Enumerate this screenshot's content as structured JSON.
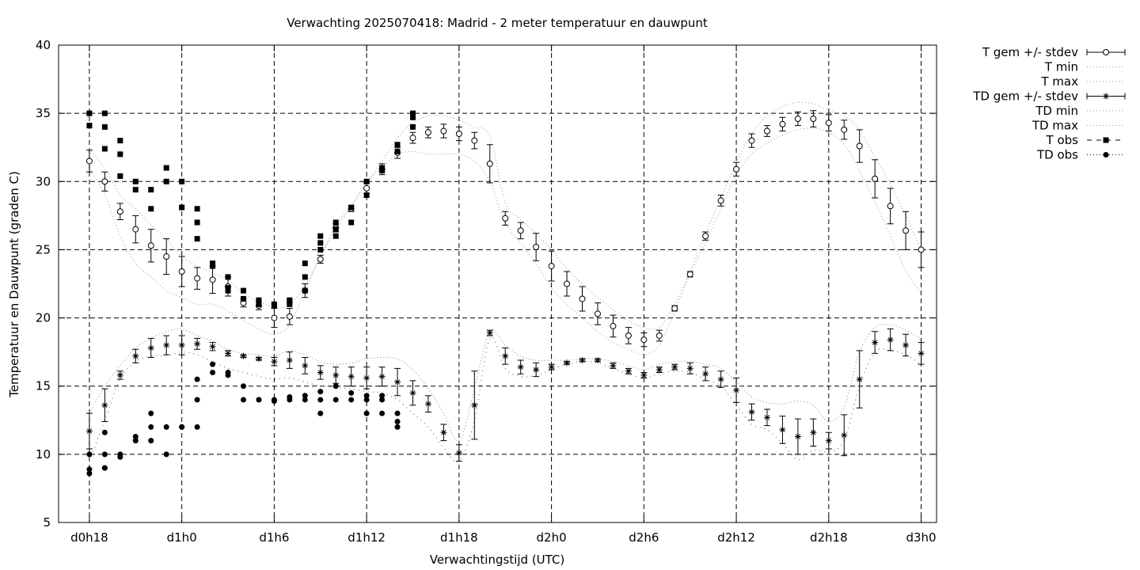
{
  "chart_data": {
    "type": "line",
    "title": "Verwachting 2025070418: Madrid - 2 meter temperatuur en dauwpunt",
    "xlabel": "Verwachtingstijd (UTC)",
    "ylabel": "Temperatuur en Dauwpunt (graden C)",
    "x_unit": "hours",
    "xlim": [
      16,
      73
    ],
    "ylim": [
      5,
      40
    ],
    "grid": true,
    "legend_position": "outside-top-right",
    "x_ticks": [
      {
        "x": 18,
        "label": "d0h18"
      },
      {
        "x": 24,
        "label": "d1h0"
      },
      {
        "x": 30,
        "label": "d1h6"
      },
      {
        "x": 36,
        "label": "d1h12"
      },
      {
        "x": 42,
        "label": "d1h18"
      },
      {
        "x": 48,
        "label": "d2h0"
      },
      {
        "x": 54,
        "label": "d2h6"
      },
      {
        "x": 60,
        "label": "d2h12"
      },
      {
        "x": 66,
        "label": "d2h18"
      },
      {
        "x": 72,
        "label": "d3h0"
      }
    ],
    "y_ticks": [
      5,
      10,
      15,
      20,
      25,
      30,
      35,
      40
    ],
    "legend": [
      {
        "label": "T gem +/- stdev",
        "style": "errorbar-circle"
      },
      {
        "label": "T min",
        "style": "dotted"
      },
      {
        "label": "T max",
        "style": "dotted"
      },
      {
        "label": "TD gem +/- stdev",
        "style": "errorbar-star"
      },
      {
        "label": "TD min",
        "style": "dotted"
      },
      {
        "label": "TD max",
        "style": "dotted"
      },
      {
        "label": "T obs",
        "style": "dashed-square"
      },
      {
        "label": "TD obs",
        "style": "dotted-circle"
      }
    ],
    "series": {
      "T_gem": {
        "x": [
          18,
          19,
          20,
          21,
          22,
          23,
          24,
          25,
          26,
          27,
          28,
          29,
          30,
          31,
          32,
          33,
          34,
          35,
          36,
          37,
          38,
          39,
          40,
          41,
          42,
          43,
          44,
          45,
          46,
          47,
          48,
          49,
          50,
          51,
          52,
          53,
          54,
          55,
          56,
          57,
          58,
          59,
          60,
          61,
          62,
          63,
          64,
          65,
          66,
          67,
          68,
          69,
          70,
          71,
          72
        ],
        "y": [
          31.5,
          30.0,
          27.8,
          26.5,
          25.3,
          24.5,
          23.4,
          22.9,
          22.8,
          22.3,
          21.1,
          20.9,
          20.0,
          20.1,
          22.0,
          24.3,
          26.6,
          28.0,
          29.5,
          30.9,
          32.1,
          33.2,
          33.6,
          33.7,
          33.5,
          33.0,
          31.3,
          27.3,
          26.4,
          25.2,
          23.8,
          22.5,
          21.4,
          20.3,
          19.4,
          18.7,
          18.4,
          18.7,
          20.7,
          23.2,
          26.0,
          28.6,
          30.9,
          33.0,
          33.7,
          34.2,
          34.6,
          34.6,
          34.3,
          33.8,
          32.6,
          30.2,
          28.2,
          26.4,
          25.0
        ],
        "stdev": [
          0.8,
          0.7,
          0.6,
          1.0,
          1.2,
          1.3,
          1.1,
          0.8,
          1.0,
          0.7,
          0.3,
          0.3,
          0.7,
          0.6,
          0.5,
          0.3,
          0.3,
          0.2,
          0.4,
          0.4,
          0.4,
          0.4,
          0.4,
          0.5,
          0.5,
          0.6,
          1.4,
          0.5,
          0.6,
          1.0,
          1.1,
          0.9,
          0.9,
          0.8,
          0.8,
          0.6,
          0.5,
          0.4,
          0.2,
          0.2,
          0.3,
          0.4,
          0.5,
          0.5,
          0.4,
          0.5,
          0.5,
          0.6,
          0.6,
          0.7,
          1.2,
          1.4,
          1.3,
          1.4,
          1.3
        ]
      },
      "T_min": {
        "x": [
          18,
          19,
          20,
          21,
          22,
          23,
          24,
          25,
          26,
          27,
          28,
          29,
          30,
          31,
          32,
          33,
          34,
          35,
          36,
          37,
          38,
          39,
          40,
          41,
          42,
          43,
          44,
          45,
          46,
          47,
          48,
          49,
          50,
          51,
          52,
          53,
          54,
          55,
          56,
          57,
          58,
          59,
          60,
          61,
          62,
          63,
          64,
          65,
          66,
          67,
          68,
          69,
          70,
          71,
          72
        ],
        "y": [
          31.0,
          29.0,
          26.0,
          24.0,
          23.0,
          22.0,
          21.5,
          21.0,
          21.0,
          20.5,
          19.8,
          19.2,
          18.8,
          19.5,
          22.0,
          24.5,
          26.5,
          28.2,
          30.0,
          31.0,
          32.0,
          32.2,
          32.0,
          32.0,
          32.0,
          31.5,
          30.0,
          27.0,
          25.5,
          24.0,
          22.2,
          21.0,
          20.0,
          19.0,
          18.2,
          17.7,
          17.3,
          18.0,
          20.5,
          23.2,
          25.5,
          28.0,
          30.5,
          32.0,
          32.8,
          33.4,
          33.8,
          33.9,
          33.6,
          32.7,
          30.8,
          28.5,
          26.0,
          23.5,
          21.8
        ]
      },
      "T_max": {
        "x": [
          18,
          19,
          20,
          21,
          22,
          23,
          24,
          25,
          26,
          27,
          28,
          29,
          30,
          31,
          32,
          33,
          34,
          35,
          36,
          37,
          38,
          39,
          40,
          41,
          42,
          43,
          44,
          45,
          46,
          47,
          48,
          49,
          50,
          51,
          52,
          53,
          54,
          55,
          56,
          57,
          58,
          59,
          60,
          61,
          62,
          63,
          64,
          65,
          66,
          67,
          68,
          69,
          70,
          71,
          72
        ],
        "y": [
          32.4,
          31.0,
          29.0,
          28.0,
          26.8,
          25.8,
          24.5,
          23.8,
          23.3,
          22.8,
          21.8,
          21.2,
          20.8,
          21.0,
          22.4,
          24.5,
          26.8,
          28.2,
          29.8,
          31.5,
          33.2,
          34.3,
          34.8,
          34.8,
          34.5,
          34.0,
          33.3,
          28.5,
          27.2,
          26.2,
          25.0,
          23.6,
          22.5,
          21.5,
          20.6,
          19.8,
          19.3,
          19.3,
          21.0,
          23.4,
          26.2,
          28.8,
          31.4,
          33.5,
          34.8,
          35.5,
          35.8,
          35.7,
          35.2,
          34.8,
          33.8,
          31.8,
          29.8,
          27.5,
          25.0
        ]
      },
      "TD_gem": {
        "x": [
          18,
          19,
          20,
          21,
          22,
          23,
          24,
          25,
          26,
          27,
          28,
          29,
          30,
          31,
          32,
          33,
          34,
          35,
          36,
          37,
          38,
          39,
          40,
          41,
          42,
          43,
          44,
          45,
          46,
          47,
          48,
          49,
          50,
          51,
          52,
          53,
          54,
          55,
          56,
          57,
          58,
          59,
          60,
          61,
          62,
          63,
          64,
          65,
          66,
          67,
          68,
          69,
          70,
          71,
          72
        ],
        "y": [
          11.7,
          13.6,
          15.8,
          17.2,
          17.8,
          18.0,
          18.0,
          18.1,
          17.9,
          17.4,
          17.2,
          17.0,
          16.8,
          16.9,
          16.5,
          16.0,
          15.8,
          15.7,
          15.6,
          15.7,
          15.3,
          14.5,
          13.7,
          11.6,
          10.1,
          13.6,
          18.9,
          17.2,
          16.4,
          16.2,
          16.4,
          16.7,
          16.9,
          16.9,
          16.5,
          16.1,
          15.8,
          16.2,
          16.4,
          16.3,
          15.9,
          15.5,
          14.7,
          13.1,
          12.7,
          11.8,
          11.3,
          11.6,
          11.0,
          11.4,
          15.5,
          18.2,
          18.4,
          18.0,
          17.4
        ],
        "stdev": [
          1.3,
          1.2,
          0.3,
          0.5,
          0.7,
          0.7,
          0.7,
          0.4,
          0.3,
          0.2,
          0.1,
          0.1,
          0.3,
          0.6,
          0.6,
          0.5,
          0.6,
          0.7,
          0.8,
          0.7,
          1.0,
          0.9,
          0.6,
          0.6,
          0.6,
          2.5,
          0.2,
          0.6,
          0.5,
          0.5,
          0.2,
          0.1,
          0.1,
          0.1,
          0.2,
          0.2,
          0.2,
          0.2,
          0.2,
          0.4,
          0.5,
          0.6,
          0.9,
          0.6,
          0.6,
          1.0,
          1.3,
          1.0,
          0.6,
          1.5,
          2.1,
          0.8,
          0.8,
          0.8,
          0.8
        ]
      },
      "TD_min": {
        "x": [
          18,
          19,
          20,
          21,
          22,
          23,
          24,
          25,
          26,
          27,
          28,
          29,
          30,
          31,
          32,
          33,
          34,
          35,
          36,
          37,
          38,
          39,
          40,
          41,
          42,
          43,
          44,
          45,
          46,
          47,
          48,
          49,
          50,
          51,
          52,
          53,
          54,
          55,
          56,
          57,
          58,
          59,
          60,
          61,
          62,
          63,
          64,
          65,
          66,
          67,
          68,
          69,
          70,
          71,
          72
        ],
        "y": [
          9.5,
          12.5,
          15.5,
          16.8,
          17.2,
          17.2,
          17.5,
          17.3,
          16.8,
          16.3,
          16.0,
          15.7,
          15.5,
          15.6,
          15.3,
          15.0,
          14.9,
          14.8,
          14.6,
          14.5,
          14.0,
          13.0,
          12.0,
          10.5,
          9.5,
          12.5,
          18.5,
          16.3,
          15.7,
          15.8,
          16.2,
          16.6,
          16.8,
          16.7,
          16.3,
          15.9,
          15.6,
          15.9,
          16.1,
          16.0,
          15.5,
          15.0,
          13.6,
          12.2,
          11.8,
          10.8,
          9.6,
          10.3,
          10.2,
          11.0,
          15.0,
          17.5,
          17.6,
          17.3,
          16.6
        ]
      },
      "TD_max": {
        "x": [
          18,
          19,
          20,
          21,
          22,
          23,
          24,
          25,
          26,
          27,
          28,
          29,
          30,
          31,
          32,
          33,
          34,
          35,
          36,
          37,
          38,
          39,
          40,
          41,
          42,
          43,
          44,
          45,
          46,
          47,
          48,
          49,
          50,
          51,
          52,
          53,
          54,
          55,
          56,
          57,
          58,
          59,
          60,
          61,
          62,
          63,
          64,
          65,
          66,
          67,
          68,
          69,
          70,
          71,
          72
        ],
        "y": [
          13.0,
          15.0,
          16.5,
          17.8,
          18.5,
          19.0,
          19.2,
          18.7,
          18.3,
          17.7,
          17.4,
          17.3,
          17.2,
          17.6,
          17.3,
          16.8,
          16.6,
          16.7,
          17.0,
          17.1,
          17.0,
          16.2,
          14.8,
          13.0,
          11.0,
          14.8,
          19.0,
          18.0,
          17.2,
          16.9,
          16.9,
          16.9,
          17.0,
          17.0,
          16.8,
          16.5,
          16.2,
          16.6,
          16.8,
          16.8,
          16.6,
          16.3,
          15.3,
          14.2,
          13.8,
          13.7,
          13.9,
          13.6,
          12.4,
          13.5,
          17.5,
          19.3,
          19.5,
          19.1,
          18.5
        ]
      },
      "T_obs": {
        "x": [
          18,
          18,
          19,
          19,
          19,
          20,
          20,
          20,
          21,
          21,
          22,
          22,
          23,
          23,
          24,
          24,
          25,
          25,
          25,
          26,
          26,
          27,
          27,
          27,
          28,
          28,
          29,
          29,
          30,
          30,
          31,
          31,
          31,
          32,
          32,
          32,
          33,
          33,
          33,
          34,
          34,
          34,
          35,
          35,
          36,
          36,
          37,
          37,
          37,
          38,
          38,
          39,
          39,
          39
        ],
        "y": [
          35,
          34.1,
          35,
          34,
          32.4,
          33,
          32,
          30.4,
          30,
          29.4,
          29.4,
          28,
          31,
          30,
          30,
          28.1,
          28,
          27,
          25.8,
          24,
          23.8,
          23,
          22.2,
          22,
          22,
          21.4,
          21,
          21.3,
          21,
          20.9,
          21.3,
          21,
          21.2,
          24,
          23,
          22,
          26,
          25.5,
          25,
          27,
          26.5,
          26,
          28.1,
          27,
          30,
          29,
          31,
          30.8,
          30.8,
          32.7,
          32.2,
          35,
          34.7,
          34
        ]
      },
      "TD_obs": {
        "x": [
          18,
          18,
          18,
          19,
          19,
          19,
          19,
          20,
          20,
          21,
          21,
          22,
          22,
          22,
          23,
          23,
          24,
          24,
          24,
          25,
          25,
          25,
          26,
          26,
          27,
          27,
          28,
          28,
          29,
          29,
          30,
          30,
          31,
          31,
          32,
          32,
          33,
          33,
          33,
          34,
          34,
          35,
          35,
          36,
          36,
          36,
          37,
          37,
          37,
          38,
          38,
          38
        ],
        "y": [
          10,
          8.9,
          8.6,
          11.6,
          10,
          9,
          9,
          10,
          9.8,
          11.3,
          11,
          13,
          12,
          11,
          12,
          10,
          12,
          12,
          12,
          15.5,
          14,
          12,
          16.6,
          16,
          16,
          15.8,
          15,
          14,
          14,
          14,
          14,
          13.9,
          14.2,
          14,
          14.3,
          14,
          14.6,
          14,
          13,
          15,
          14,
          14.5,
          14,
          14.3,
          14,
          13,
          14.3,
          14,
          13,
          13,
          12.4,
          12
        ]
      }
    }
  }
}
